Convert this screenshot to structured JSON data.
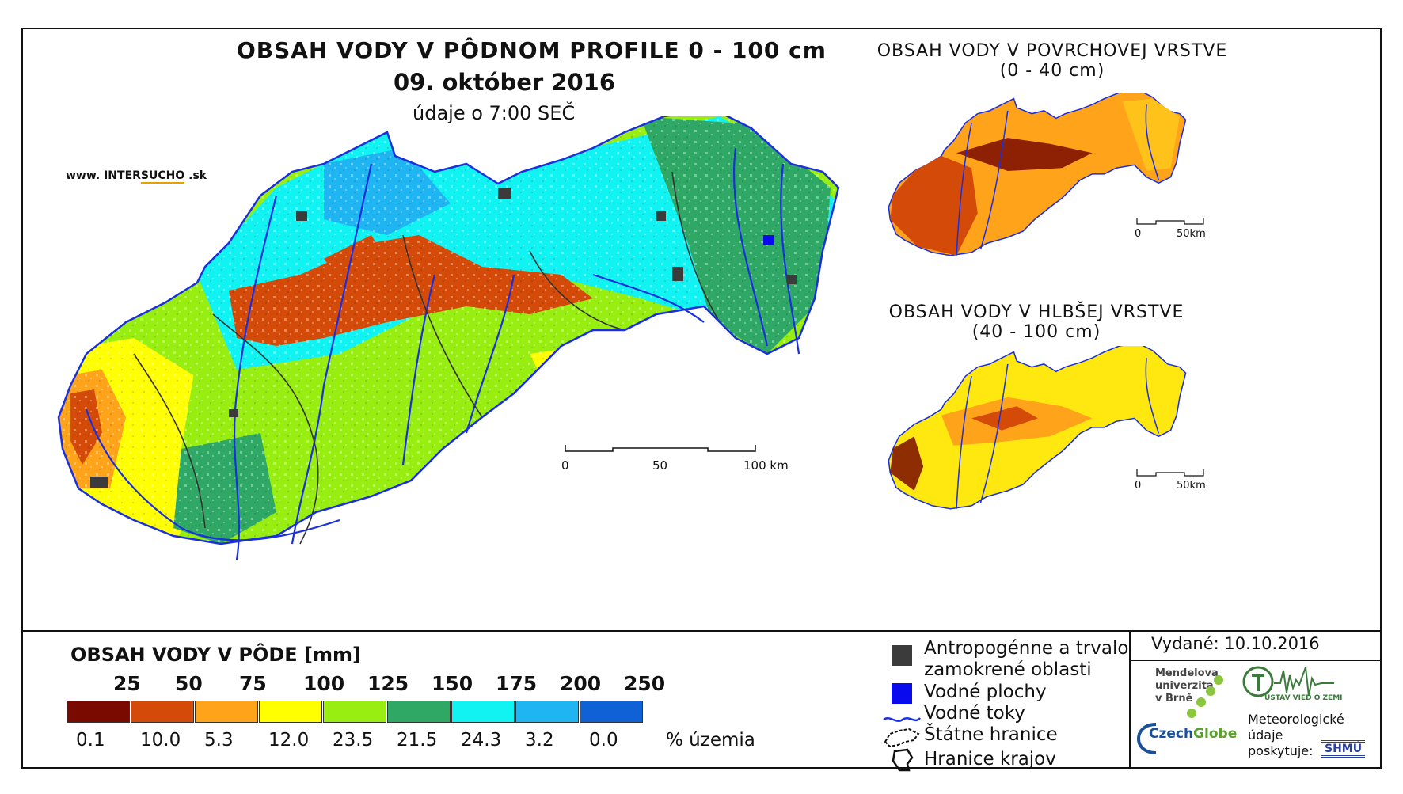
{
  "header": {
    "main_title": "OBSAH VODY V PÔDNOM PROFILE 0 - 100 cm",
    "date": "09. október 2016",
    "time_note": "údaje o 7:00 SEČ",
    "website_prefix": "www. INTER",
    "website_mid": "SUCHO",
    "website_suffix": " .sk"
  },
  "inset_top": {
    "title_line1": "OBSAH VODY V POVRCHOVEJ VRSTVE",
    "title_line2": "(0 - 40 cm)",
    "scale_0": "0",
    "scale_50": "50km"
  },
  "inset_bottom": {
    "title_line1": "OBSAH VODY V HLBŠEJ VRSTVE",
    "title_line2": "(40 - 100 cm)",
    "scale_0": "0",
    "scale_50": "50km"
  },
  "main_scale": {
    "s0": "0",
    "s50": "50",
    "s100": "100 km"
  },
  "legend": {
    "title": "OBSAH VODY V PÔDE [mm]",
    "thresholds": [
      "25",
      "50",
      "75",
      "100",
      "125",
      "150",
      "175",
      "200",
      "250"
    ],
    "classes": [
      {
        "color": "#7a0a00",
        "pct": "0.1"
      },
      {
        "color": "#d44a08",
        "pct": "10.0"
      },
      {
        "color": "#ffa31a",
        "pct": "5.3"
      },
      {
        "color": "#ffff00",
        "pct": "12.0"
      },
      {
        "color": "#99ee11",
        "pct": "23.5"
      },
      {
        "color": "#2fa865",
        "pct": "21.5"
      },
      {
        "color": "#11f2f2",
        "pct": "24.3"
      },
      {
        "color": "#1fb4f2",
        "pct": "3.2"
      },
      {
        "color": "#1060d6",
        "pct": "0.0"
      }
    ],
    "pct_unit": "% územia"
  },
  "symbols": {
    "anthro_line1": "Antropogénne a trvalo",
    "anthro_line2": "zamokrené oblasti",
    "water_bodies": "Vodné plochy",
    "rivers": "Vodné toky",
    "state_border": "Štátne hranice",
    "region_border": "Hranice krajov"
  },
  "publisher": {
    "issued": "Vydané: 10.10.2016",
    "mendel_1": "Mendelova",
    "mendel_2": "univerzita",
    "mendel_3": "v Brně",
    "czechglobe_1": "Czech",
    "czechglobe_2": "Globe",
    "uvgz": "ÚSTAV VIED O ZEMI",
    "meteo_1": "Meteorologické",
    "meteo_2": "údaje",
    "meteo_3": "poskytuje:",
    "shmu": "SHMÚ"
  }
}
